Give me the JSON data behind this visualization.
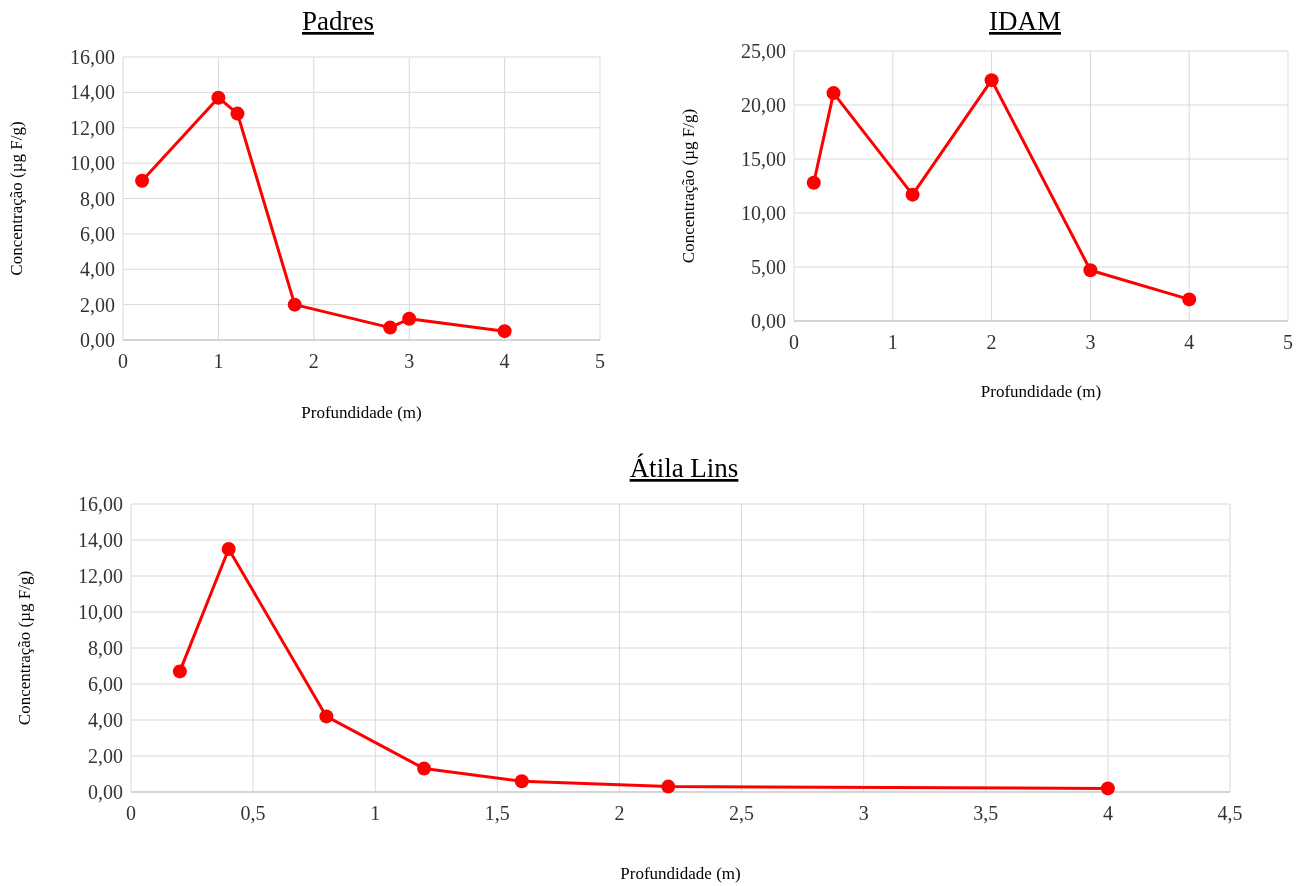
{
  "chart_data": [
    {
      "type": "line",
      "title": "Padres",
      "xlabel": "Profundidade (m)",
      "ylabel": "Concentração (µg F/g)",
      "x": [
        0.2,
        1,
        1.2,
        1.8,
        2.8,
        3,
        4
      ],
      "series": [
        {
          "color": "#ff0000",
          "values": [
            9.0,
            13.7,
            12.8,
            2.0,
            0.7,
            1.2,
            0.5
          ]
        }
      ],
      "xlim": [
        0,
        5
      ],
      "xticks": [
        0,
        1,
        2,
        3,
        4,
        5
      ],
      "ylim": [
        0,
        16
      ],
      "yticks": [
        {
          "value": 0,
          "label": "0,00"
        },
        {
          "value": 2,
          "label": "2,00"
        },
        {
          "value": 4,
          "label": "4,00"
        },
        {
          "value": 6,
          "label": "6,00"
        },
        {
          "value": 8,
          "label": "8,00"
        },
        {
          "value": 10,
          "label": "10,00"
        },
        {
          "value": 12,
          "label": "12,00"
        },
        {
          "value": 14,
          "label": "14,00"
        },
        {
          "value": 16,
          "label": "16,00"
        }
      ],
      "grid": true,
      "marker": "circle"
    },
    {
      "type": "line",
      "title": "IDAM",
      "xlabel": "Profundidade (m)",
      "ylabel": "Concentração (µg F/g)",
      "x": [
        0.2,
        0.4,
        1.2,
        2,
        3,
        4
      ],
      "series": [
        {
          "color": "#ff0000",
          "values": [
            12.8,
            21.1,
            11.7,
            22.3,
            4.7,
            2.0
          ]
        }
      ],
      "xlim": [
        0,
        5
      ],
      "xticks": [
        0,
        1,
        2,
        3,
        4,
        5
      ],
      "ylim": [
        0,
        25
      ],
      "yticks": [
        {
          "value": 0,
          "label": "0,00"
        },
        {
          "value": 5,
          "label": "5,00"
        },
        {
          "value": 10,
          "label": "10,00"
        },
        {
          "value": 15,
          "label": "15,00"
        },
        {
          "value": 20,
          "label": "20,00"
        },
        {
          "value": 25,
          "label": "25,00"
        }
      ],
      "grid": true,
      "marker": "circle"
    },
    {
      "type": "line",
      "title": "Átila Lins",
      "xlabel": "Profundidade (m)",
      "ylabel": "Concentração (µg F/g)",
      "x": [
        0.2,
        0.4,
        0.8,
        1.2,
        1.6,
        2.2,
        4
      ],
      "series": [
        {
          "color": "#ff0000",
          "values": [
            6.7,
            13.5,
            4.2,
            1.3,
            0.6,
            0.3,
            0.2
          ]
        }
      ],
      "xlim": [
        0,
        4.5
      ],
      "xticks": [
        0,
        {
          "value": 0.5,
          "label": "0,5"
        },
        1,
        {
          "value": 1.5,
          "label": "1,5"
        },
        2,
        {
          "value": 2.5,
          "label": "2,5"
        },
        3,
        {
          "value": 3.5,
          "label": "3,5"
        },
        4,
        {
          "value": 4.5,
          "label": "4,5"
        }
      ],
      "ylim": [
        0,
        16
      ],
      "yticks": [
        {
          "value": 0,
          "label": "0,00"
        },
        {
          "value": 2,
          "label": "2,00"
        },
        {
          "value": 4,
          "label": "4,00"
        },
        {
          "value": 6,
          "label": "6,00"
        },
        {
          "value": 8,
          "label": "8,00"
        },
        {
          "value": 10,
          "label": "10,00"
        },
        {
          "value": 12,
          "label": "12,00"
        },
        {
          "value": 14,
          "label": "14,00"
        },
        {
          "value": 16,
          "label": "16,00"
        }
      ],
      "grid": true,
      "marker": "circle"
    }
  ]
}
